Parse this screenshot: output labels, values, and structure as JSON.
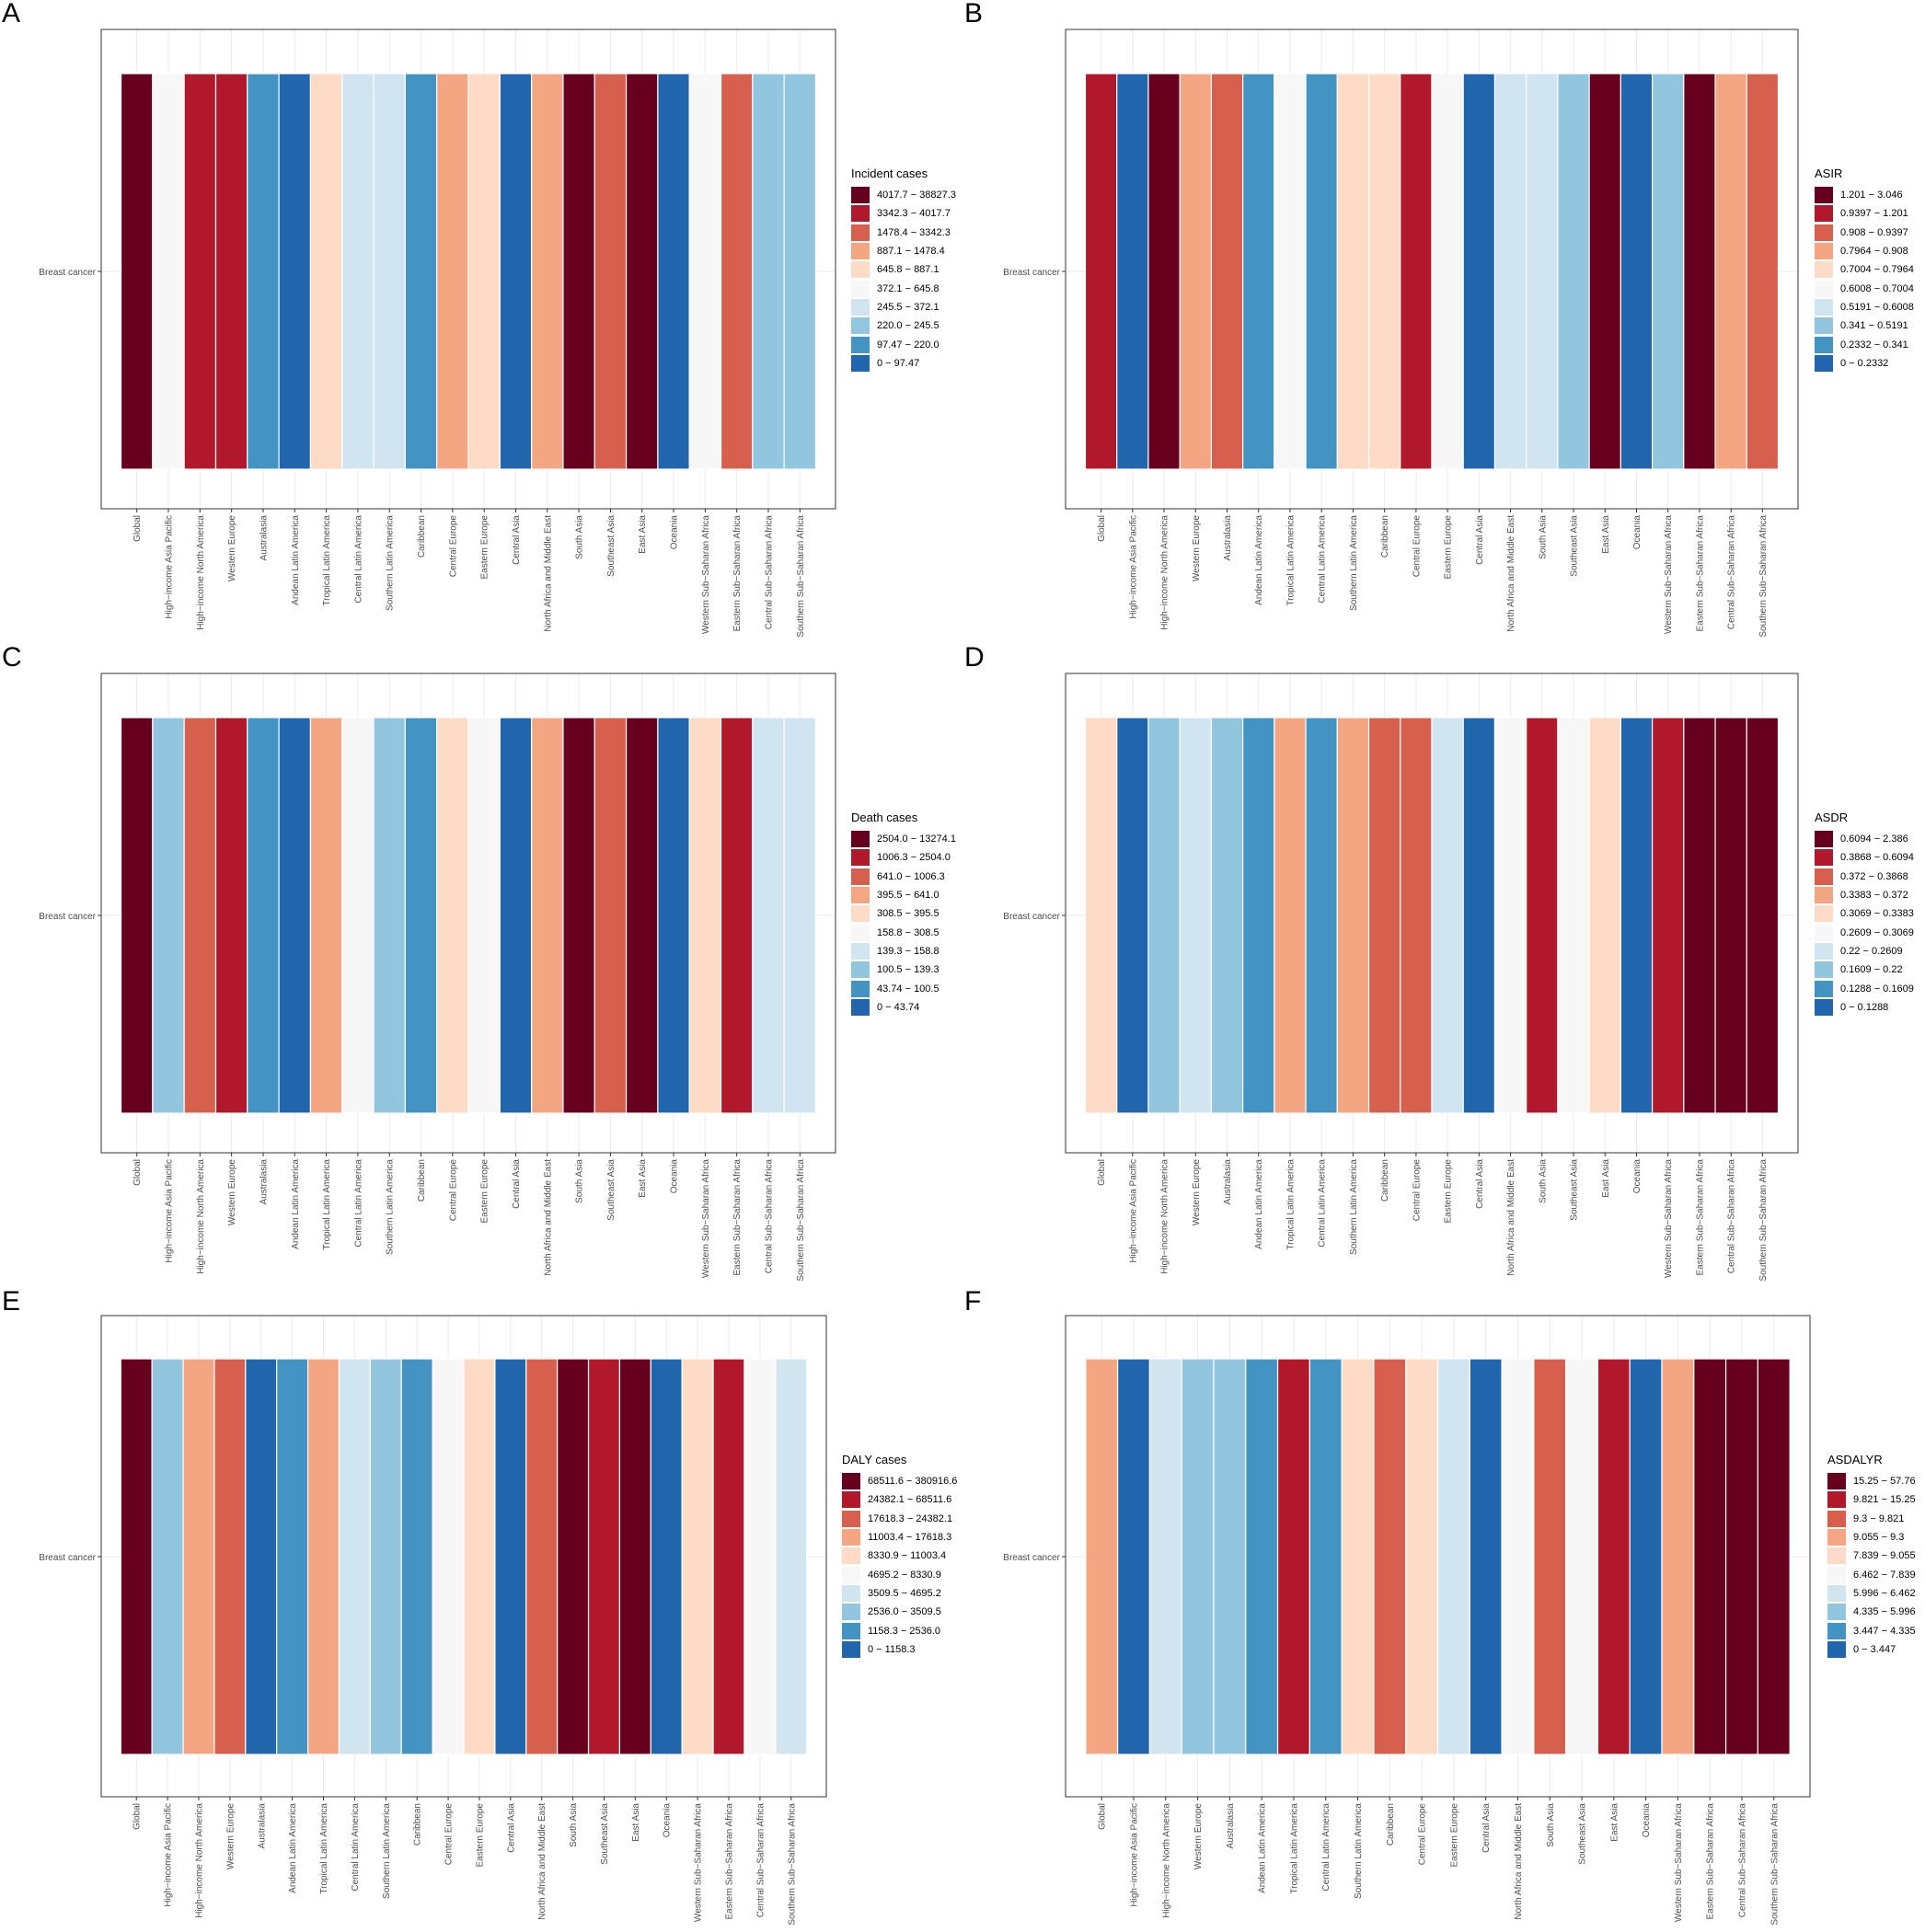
{
  "colors": [
    "#67001f",
    "#b2182b",
    "#d6604d",
    "#f4a582",
    "#fddbc7",
    "#f7f7f7",
    "#d1e5f0",
    "#92c5de",
    "#4393c3",
    "#2166ac"
  ],
  "chart_data": [
    {
      "type": "heatmap",
      "letter": "A",
      "row_label": "Breast cancer",
      "categories": [
        "Global",
        "High−income Asia Pacific",
        "High−income North America",
        "Western Europe",
        "Australasia",
        "Andean Latin America",
        "Tropical Latin America",
        "Central Latin America",
        "Southern Latin America",
        "Caribbean",
        "Central Europe",
        "Eastern Europe",
        "Central Asia",
        "North Africa and Middle East",
        "South Asia",
        "Southeast Asia",
        "East Asia",
        "Oceania",
        "Western Sub−Saharan Africa",
        "Eastern Sub−Saharan Africa",
        "Central Sub−Saharan Africa",
        "Southern Sub−Saharan Africa"
      ],
      "legend_title": "Incident cases",
      "legend_labels": [
        "4017.7 − 38827.3",
        "3342.3 − 4017.7",
        "1478.4 − 3342.3",
        "887.1 − 1478.4",
        "645.8 − 887.1",
        "372.1 − 645.8",
        "245.5 − 372.1",
        "220.0 − 245.5",
        "97.47 − 220.0",
        "0 − 97.47"
      ],
      "class_index": [
        0,
        5,
        1,
        1,
        8,
        9,
        4,
        6,
        6,
        8,
        3,
        4,
        9,
        3,
        0,
        2,
        0,
        9,
        5,
        2,
        7,
        7
      ]
    },
    {
      "type": "heatmap",
      "letter": "B",
      "row_label": "Breast cancer",
      "categories": [
        "Global",
        "High−income Asia Pacific",
        "High−income North America",
        "Western Europe",
        "Australasia",
        "Andean Latin America",
        "Tropical Latin America",
        "Central Latin America",
        "Southern Latin America",
        "Caribbean",
        "Central Europe",
        "Eastern Europe",
        "Central Asia",
        "North Africa and Middle East",
        "South Asia",
        "Southeast Asia",
        "East Asia",
        "Oceania",
        "Western Sub−Saharan Africa",
        "Eastern Sub−Saharan Africa",
        "Central Sub−Saharan Africa",
        "Southern Sub−Saharan Africa"
      ],
      "legend_title": "ASIR",
      "legend_labels": [
        "1.201 − 3.046",
        "0.9397 − 1.201",
        "0.908 − 0.9397",
        "0.7964 − 0.908",
        "0.7004 − 0.7964",
        "0.6008 − 0.7004",
        "0.5191 − 0.6008",
        "0.341 − 0.5191",
        "0.2332 − 0.341",
        "0 − 0.2332"
      ],
      "class_index": [
        1,
        9,
        0,
        3,
        2,
        8,
        5,
        8,
        4,
        4,
        1,
        5,
        9,
        6,
        6,
        7,
        0,
        9,
        7,
        0,
        3,
        2
      ]
    },
    {
      "type": "heatmap",
      "letter": "C",
      "row_label": "Breast cancer",
      "categories": [
        "Global",
        "High−income Asia Pacific",
        "High−income North America",
        "Western Europe",
        "Australasia",
        "Andean Latin America",
        "Tropical Latin America",
        "Central Latin America",
        "Southern Latin America",
        "Caribbean",
        "Central Europe",
        "Eastern Europe",
        "Central Asia",
        "North Africa and Middle East",
        "South Asia",
        "Southeast Asia",
        "East Asia",
        "Oceania",
        "Western Sub−Saharan Africa",
        "Eastern Sub−Saharan Africa",
        "Central Sub−Saharan Africa",
        "Southern Sub−Saharan Africa"
      ],
      "legend_title": "Death cases",
      "legend_labels": [
        "2504.0 − 13274.1",
        "1006.3 − 2504.0",
        "641.0 − 1006.3",
        "395.5 − 641.0",
        "308.5 − 395.5",
        "158.8 − 308.5",
        "139.3 − 158.8",
        "100.5 − 139.3",
        "43.74 − 100.5",
        "0 − 43.74"
      ],
      "class_index": [
        0,
        7,
        2,
        1,
        8,
        9,
        3,
        5,
        7,
        8,
        4,
        5,
        9,
        3,
        0,
        2,
        0,
        9,
        4,
        1,
        6,
        6
      ]
    },
    {
      "type": "heatmap",
      "letter": "D",
      "row_label": "Breast cancer",
      "categories": [
        "Global",
        "High−income Asia Pacific",
        "High−income North America",
        "Western Europe",
        "Australasia",
        "Andean Latin America",
        "Tropical Latin America",
        "Central Latin America",
        "Southern Latin America",
        "Caribbean",
        "Central Europe",
        "Eastern Europe",
        "Central Asia",
        "North Africa and Middle East",
        "South Asia",
        "Southeast Asia",
        "East Asia",
        "Oceania",
        "Western Sub−Saharan Africa",
        "Eastern Sub−Saharan Africa",
        "Central Sub−Saharan Africa",
        "Southern Sub−Saharan Africa"
      ],
      "legend_title": "ASDR",
      "legend_labels": [
        "0.6094 − 2.386",
        "0.3868 − 0.6094",
        "0.372 − 0.3868",
        "0.3383 − 0.372",
        "0.3069 − 0.3383",
        "0.2609 − 0.3069",
        "0.22 − 0.2609",
        "0.1609 − 0.22",
        "0.1288 − 0.1609",
        "0 − 0.1288"
      ],
      "class_index": [
        4,
        9,
        7,
        6,
        7,
        8,
        3,
        8,
        3,
        2,
        2,
        6,
        9,
        5,
        1,
        5,
        4,
        9,
        1,
        0,
        0,
        0
      ]
    },
    {
      "type": "heatmap",
      "letter": "E",
      "row_label": "Breast cancer",
      "categories": [
        "Global",
        "High−income Asia Pacific",
        "High−income North America",
        "Western Europe",
        "Australasia",
        "Andean Latin America",
        "Tropical Latin America",
        "Central Latin America",
        "Southern Latin America",
        "Caribbean",
        "Central Europe",
        "Eastern Europe",
        "Central Asia",
        "North Africa and Middle East",
        "South Asia",
        "Southeast Asia",
        "East Asia",
        "Oceania",
        "Western Sub−Saharan Africa",
        "Eastern Sub−Saharan Africa",
        "Central Sub−Saharan Africa",
        "Southern Sub−Saharan Africa"
      ],
      "legend_title": "DALY cases",
      "legend_labels": [
        "68511.6 − 380916.6",
        "24382.1 − 68511.6",
        "17618.3 − 24382.1",
        "11003.4 − 17618.3",
        "8330.9 − 11003.4",
        "4695.2 − 8330.9",
        "3509.5 − 4695.2",
        "2536.0 − 3509.5",
        "1158.3 − 2536.0",
        "0 − 1158.3"
      ],
      "class_index": [
        0,
        7,
        3,
        2,
        9,
        8,
        3,
        6,
        7,
        8,
        5,
        4,
        9,
        2,
        0,
        1,
        0,
        9,
        4,
        1,
        5,
        6
      ]
    },
    {
      "type": "heatmap",
      "letter": "F",
      "row_label": "Breast cancer",
      "categories": [
        "Global",
        "High−income Asia Pacific",
        "High−income North America",
        "Western Europe",
        "Australasia",
        "Andean Latin America",
        "Tropical Latin America",
        "Central Latin America",
        "Southern Latin America",
        "Caribbean",
        "Central Europe",
        "Eastern Europe",
        "Central Asia",
        "North Africa and Middle East",
        "South Asia",
        "Southeast Asia",
        "East Asia",
        "Oceania",
        "Western Sub−Saharan Africa",
        "Eastern Sub−Saharan Africa",
        "Central Sub−Saharan Africa",
        "Southern Sub−Saharan Africa"
      ],
      "legend_title": "ASDALYR",
      "legend_labels": [
        "15.25 − 57.76",
        "9.821 − 15.25",
        "9.3 − 9.821",
        "9.055 − 9.3",
        "7.839 − 9.055",
        "6.462 − 7.839",
        "5.996 − 6.462",
        "4.335 − 5.996",
        "3.447 − 4.335",
        "0 − 3.447"
      ],
      "class_index": [
        3,
        9,
        6,
        7,
        7,
        8,
        1,
        8,
        4,
        2,
        4,
        6,
        9,
        5,
        2,
        5,
        1,
        9,
        3,
        0,
        0,
        0
      ]
    }
  ]
}
